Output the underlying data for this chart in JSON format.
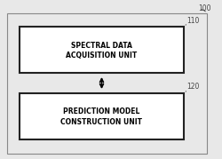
{
  "bg_color": "#e8e8e8",
  "outer_box_edge": "#888888",
  "inner_box_fill": "#ffffff",
  "inner_box_edge": "#222222",
  "text_color": "#000000",
  "ref_color": "#444444",
  "outer_ref": "100",
  "box1_ref": "110",
  "box2_ref": "120",
  "box1_line1": "SPECTRAL DATA",
  "box1_line2": "ACQUISITION UNIT",
  "box2_line1": "PREDICTION MODEL",
  "box2_line2": "CONSTRUCTION UNIT",
  "font_size": 5.5,
  "ref_font_size": 5.5
}
